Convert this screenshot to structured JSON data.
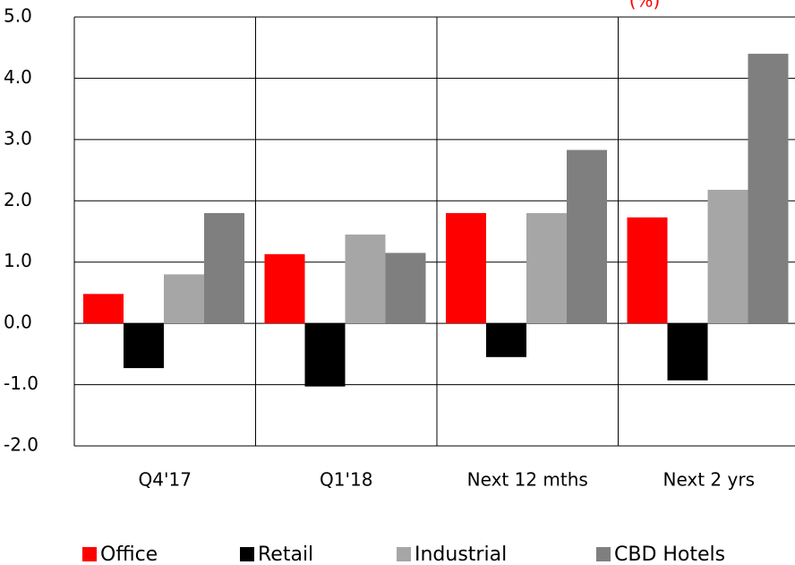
{
  "chart_data": {
    "type": "bar",
    "title": "(%)",
    "categories": [
      "Q4'17",
      "Q1'18",
      "Next 12 mths",
      "Next 2 yrs"
    ],
    "series": [
      {
        "name": "Office",
        "color": "#ff0000",
        "values": [
          0.48,
          1.13,
          1.8,
          1.73
        ]
      },
      {
        "name": "Retail",
        "color": "#000000",
        "values": [
          -0.73,
          -1.03,
          -0.55,
          -0.93
        ]
      },
      {
        "name": "Industrial",
        "color": "#a6a6a6",
        "values": [
          0.8,
          1.45,
          1.8,
          2.18
        ]
      },
      {
        "name": "CBD Hotels",
        "color": "#7f7f7f",
        "values": [
          1.8,
          1.15,
          2.83,
          4.4
        ]
      }
    ],
    "ylim": [
      -2,
      5
    ],
    "yticks": [
      {
        "value": -2,
        "label": "-2.0"
      },
      {
        "value": -1,
        "label": "-1.0"
      },
      {
        "value": 0,
        "label": "0.0"
      },
      {
        "value": 1,
        "label": "1.0"
      },
      {
        "value": 2,
        "label": "2.0"
      },
      {
        "value": 3,
        "label": "3.0"
      },
      {
        "value": 4,
        "label": "4.0"
      },
      {
        "value": 5,
        "label": "5.0"
      }
    ],
    "grid": true,
    "legend": "bottom"
  }
}
